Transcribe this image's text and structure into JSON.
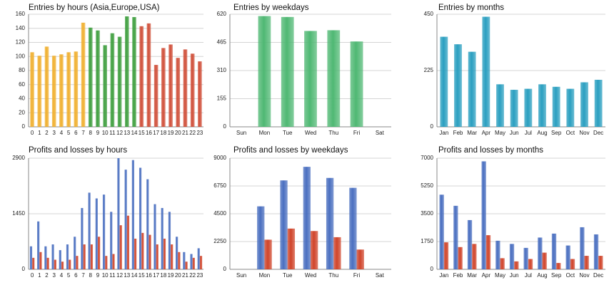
{
  "chart_data": [
    {
      "type": "bar",
      "title": "Entries by hours (Asia,Europe,USA)",
      "categories": [
        "0",
        "1",
        "2",
        "3",
        "4",
        "5",
        "6",
        "7",
        "8",
        "9",
        "10",
        "11",
        "12",
        "13",
        "14",
        "15",
        "16",
        "17",
        "18",
        "19",
        "20",
        "21",
        "22",
        "23"
      ],
      "values": [
        106,
        101,
        114,
        101,
        103,
        106,
        107,
        148,
        141,
        137,
        116,
        133,
        128,
        157,
        156,
        143,
        147,
        88,
        112,
        117,
        98,
        110,
        104,
        93
      ],
      "colors": [
        "#f0b030",
        "#f0b030",
        "#f0b030",
        "#f0b030",
        "#f0b030",
        "#f0b030",
        "#f0b030",
        "#f0b030",
        "#3f9f3f",
        "#3f9f3f",
        "#3f9f3f",
        "#3f9f3f",
        "#3f9f3f",
        "#3f9f3f",
        "#3f9f3f",
        "#d0503a",
        "#d0503a",
        "#d0503a",
        "#d0503a",
        "#d0503a",
        "#d0503a",
        "#d0503a",
        "#d0503a",
        "#d0503a"
      ],
      "ylim": [
        0,
        160
      ],
      "yticks": [
        0,
        20,
        40,
        60,
        80,
        100,
        120,
        140,
        160
      ],
      "grid": true
    },
    {
      "type": "bar",
      "title": "Entries by weekdays",
      "categories": [
        "Sun",
        "Mon",
        "Tue",
        "Wed",
        "Thu",
        "Fri",
        "Sat"
      ],
      "values": [
        0,
        610,
        605,
        528,
        532,
        470,
        0
      ],
      "color": "#4fb873",
      "ylim": [
        0,
        620
      ],
      "yticks": [
        0,
        155,
        310,
        465,
        620
      ],
      "grid": true
    },
    {
      "type": "bar",
      "title": "Entries by months",
      "categories": [
        "Jan",
        "Feb",
        "Mar",
        "Apr",
        "May",
        "Jun",
        "Jul",
        "Aug",
        "Sep",
        "Oct",
        "Nov",
        "Dec"
      ],
      "values": [
        360,
        330,
        300,
        440,
        170,
        148,
        152,
        170,
        160,
        152,
        178,
        188
      ],
      "color": "#2a9fc0",
      "ylim": [
        0,
        450
      ],
      "yticks": [
        0,
        225,
        450
      ],
      "grid": true
    },
    {
      "type": "grouped-bar",
      "title": "Profits and losses by hours",
      "categories": [
        "0",
        "1",
        "2",
        "3",
        "4",
        "5",
        "6",
        "7",
        "8",
        "9",
        "10",
        "11",
        "12",
        "13",
        "14",
        "15",
        "16",
        "17",
        "18",
        "19",
        "20",
        "21",
        "22",
        "23"
      ],
      "series": [
        {
          "color": "#4a6fc0",
          "values": [
            600,
            1250,
            600,
            650,
            500,
            650,
            850,
            1600,
            2000,
            1850,
            1950,
            1500,
            2900,
            2600,
            2850,
            2650,
            2350,
            1700,
            1600,
            1500,
            850,
            450,
            400,
            550
          ]
        },
        {
          "color": "#d0442a",
          "values": [
            300,
            450,
            300,
            250,
            200,
            250,
            350,
            650,
            650,
            850,
            350,
            400,
            1150,
            1400,
            800,
            950,
            900,
            650,
            800,
            650,
            450,
            200,
            300,
            350
          ]
        }
      ],
      "ylim": [
        0,
        2900
      ],
      "yticks": [
        0,
        1450,
        2900
      ],
      "grid": true
    },
    {
      "type": "grouped-bar",
      "title": "Profits and losses by weekdays",
      "categories": [
        "Sun",
        "Mon",
        "Tue",
        "Wed",
        "Thu",
        "Fri",
        "Sat"
      ],
      "series": [
        {
          "color": "#4a6fc0",
          "values": [
            0,
            5100,
            7200,
            8300,
            7400,
            6600,
            0
          ]
        },
        {
          "color": "#d0442a",
          "values": [
            0,
            2400,
            3300,
            3100,
            2600,
            1600,
            0
          ]
        }
      ],
      "ylim": [
        0,
        9000
      ],
      "yticks": [
        0,
        2250,
        4500,
        6750,
        9000
      ],
      "grid": true
    },
    {
      "type": "grouped-bar",
      "title": "Profits and losses by months",
      "categories": [
        "Jan",
        "Feb",
        "Mar",
        "Apr",
        "May",
        "Jun",
        "Jul",
        "Aug",
        "Sep",
        "Oct",
        "Nov",
        "Dec"
      ],
      "series": [
        {
          "color": "#4a6fc0",
          "values": [
            4700,
            4000,
            3100,
            6800,
            1800,
            1600,
            1350,
            2000,
            2250,
            1500,
            2650,
            2200
          ]
        },
        {
          "color": "#d0442a",
          "values": [
            1700,
            1400,
            1600,
            2150,
            700,
            500,
            650,
            1050,
            400,
            650,
            850,
            850
          ]
        }
      ],
      "ylim": [
        0,
        7000
      ],
      "yticks": [
        0,
        1750,
        3500,
        5250,
        7000
      ],
      "grid": true
    }
  ]
}
